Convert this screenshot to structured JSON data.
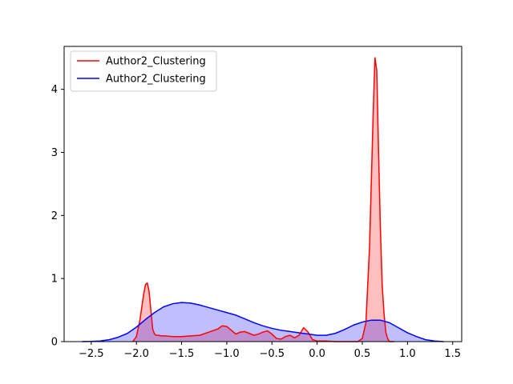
{
  "chart_data": {
    "type": "area",
    "title": "",
    "xlabel": "",
    "ylabel": "",
    "xlim": [
      -2.8,
      1.6
    ],
    "ylim": [
      0,
      4.68
    ],
    "xticks": [
      -2.5,
      -2.0,
      -1.5,
      -1.0,
      -0.5,
      0.0,
      0.5,
      1.0,
      1.5
    ],
    "xtick_labels": [
      "−2.5",
      "−2.0",
      "−1.5",
      "−1.0",
      "−0.5",
      "0.0",
      "0.5",
      "1.0",
      "1.5"
    ],
    "yticks": [
      0,
      1,
      2,
      3,
      4
    ],
    "ytick_labels": [
      "0",
      "1",
      "2",
      "3",
      "4"
    ],
    "grid": false,
    "legend": {
      "position": "top-left"
    },
    "series": [
      {
        "name": "Author2_Clustering",
        "color": "#ff0000",
        "fill_color": "#ff0000",
        "fill_opacity": 0.25,
        "x": [
          -2.04,
          -2.0,
          -1.96,
          -1.92,
          -1.9,
          -1.88,
          -1.86,
          -1.84,
          -1.82,
          -1.8,
          -1.78,
          -1.76,
          -1.72,
          -1.68,
          -1.6,
          -1.5,
          -1.4,
          -1.3,
          -1.2,
          -1.1,
          -1.05,
          -1.0,
          -0.95,
          -0.9,
          -0.85,
          -0.8,
          -0.75,
          -0.7,
          -0.65,
          -0.6,
          -0.55,
          -0.5,
          -0.45,
          -0.4,
          -0.35,
          -0.3,
          -0.25,
          -0.2,
          -0.15,
          -0.1,
          -0.05,
          0.0,
          0.1,
          0.2,
          0.3,
          0.4,
          0.45,
          0.5,
          0.54,
          0.58,
          0.62,
          0.64,
          0.66,
          0.68,
          0.7,
          0.72,
          0.74,
          0.76,
          0.78,
          0.8,
          0.82,
          0.84,
          0.85
        ],
        "y": [
          0.0,
          0.08,
          0.35,
          0.75,
          0.9,
          0.93,
          0.8,
          0.5,
          0.2,
          0.12,
          0.1,
          0.1,
          0.09,
          0.09,
          0.08,
          0.08,
          0.09,
          0.1,
          0.15,
          0.2,
          0.25,
          0.24,
          0.18,
          0.12,
          0.15,
          0.16,
          0.13,
          0.1,
          0.12,
          0.15,
          0.17,
          0.12,
          0.05,
          0.04,
          0.08,
          0.1,
          0.06,
          0.1,
          0.22,
          0.15,
          0.03,
          0.01,
          0.01,
          0.0,
          0.0,
          0.0,
          0.0,
          0.05,
          0.3,
          1.5,
          3.6,
          4.5,
          4.3,
          3.0,
          1.8,
          0.9,
          0.45,
          0.15,
          0.05,
          0.0,
          0.0,
          0.0,
          0.0
        ]
      },
      {
        "name": "Author2_Clustering",
        "color": "#0000ff",
        "fill_color": "#0000ff",
        "fill_opacity": 0.25,
        "x": [
          -2.6,
          -2.5,
          -2.4,
          -2.3,
          -2.2,
          -2.1,
          -2.0,
          -1.9,
          -1.8,
          -1.7,
          -1.6,
          -1.5,
          -1.4,
          -1.3,
          -1.2,
          -1.1,
          -1.0,
          -0.9,
          -0.8,
          -0.7,
          -0.6,
          -0.5,
          -0.4,
          -0.3,
          -0.2,
          -0.1,
          0.0,
          0.1,
          0.2,
          0.3,
          0.4,
          0.5,
          0.6,
          0.7,
          0.8,
          0.9,
          1.0,
          1.1,
          1.2,
          1.3,
          1.4
        ],
        "y": [
          0.0,
          0.003,
          0.01,
          0.03,
          0.07,
          0.13,
          0.23,
          0.35,
          0.46,
          0.55,
          0.6,
          0.62,
          0.61,
          0.58,
          0.54,
          0.5,
          0.46,
          0.42,
          0.36,
          0.3,
          0.25,
          0.21,
          0.18,
          0.16,
          0.14,
          0.12,
          0.1,
          0.1,
          0.13,
          0.19,
          0.26,
          0.31,
          0.34,
          0.34,
          0.3,
          0.22,
          0.14,
          0.08,
          0.03,
          0.01,
          0.0
        ]
      }
    ]
  }
}
